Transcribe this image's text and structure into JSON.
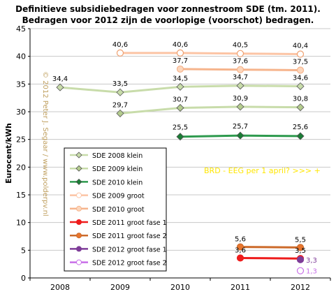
{
  "chart_data": {
    "type": "line",
    "title": "Definitieve subsidiebedragen  voor zonnestroom  SDE (tm. 2011).",
    "subtitle": "Bedragen voor 2012 zijn de voorlopige  (voorschot) bedragen.",
    "xlabel": "",
    "ylabel": "Eurocent/kWh",
    "categories": [
      "2008",
      "2009",
      "2010",
      "2011",
      "2012"
    ],
    "ylim": [
      0,
      45
    ],
    "yticks": [
      "0",
      "5",
      "10",
      "15",
      "20",
      "25",
      "30",
      "35",
      "40",
      "45"
    ],
    "grid": true,
    "legend_position": "left-center",
    "annotation": "BRD - EEG per 1 april? >>>  +",
    "watermark": "© 2012 Peter J. Segaar / www.polderpv.nl",
    "series": [
      {
        "name": "SDE 2008 klein",
        "values": [
          34.4,
          33.5,
          34.5,
          34.7,
          34.6
        ],
        "labels": [
          "34,4",
          "33,5",
          "34,5",
          "34,7",
          "34,6"
        ],
        "color": "#c8dcaa",
        "marker_fill": "#c8dcaa",
        "marker": "diamond"
      },
      {
        "name": "SDE 2009 klein",
        "values": [
          null,
          29.7,
          30.7,
          30.9,
          30.8
        ],
        "labels": [
          "",
          "29,7",
          "30,7",
          "30,9",
          "30,8"
        ],
        "color": "#c8dcaa",
        "marker_fill": "#b4cc8e",
        "marker": "diamond"
      },
      {
        "name": "SDE 2010 klein",
        "values": [
          null,
          null,
          25.5,
          25.7,
          25.6
        ],
        "labels": [
          "",
          "",
          "25,5",
          "25,7",
          "25,6"
        ],
        "color": "#2e9a4e",
        "marker_fill": "#1a7d35",
        "marker": "diamond"
      },
      {
        "name": "SDE 2009 groot",
        "values": [
          null,
          40.6,
          40.6,
          40.5,
          40.4
        ],
        "labels": [
          "",
          "40,6",
          "40,6",
          "40,5",
          "40,4"
        ],
        "color": "#fcc4a4",
        "marker_fill": "#ffffff",
        "marker": "circle"
      },
      {
        "name": "SDE 2010 groot",
        "values": [
          null,
          null,
          37.7,
          37.6,
          37.5
        ],
        "labels": [
          "",
          "",
          "37,7",
          "37,6",
          "37,5"
        ],
        "color": "#f6b48c",
        "marker_fill": "#fcd7bd",
        "marker": "circle"
      },
      {
        "name": "SDE 2011 groot fase 1",
        "values": [
          null,
          null,
          null,
          3.6,
          3.5
        ],
        "labels": [
          "",
          "",
          "",
          "3,6",
          "3,5"
        ],
        "color": "#ee1c1c",
        "marker_fill": "#ee1c1c",
        "marker": "circle"
      },
      {
        "name": "SDE 2011 groot fase 2",
        "values": [
          null,
          null,
          null,
          5.6,
          5.5
        ],
        "labels": [
          "",
          "",
          "",
          "5,6",
          "5,5"
        ],
        "color": "#cc6a2a",
        "marker_fill": "#e8762e",
        "marker": "circle"
      },
      {
        "name": "SDE 2012 groot fase 1",
        "values": [
          null,
          null,
          null,
          null,
          3.3
        ],
        "labels": [
          "",
          "",
          "",
          "",
          "3,3"
        ],
        "color": "#7e3c98",
        "marker_fill": "#7e3c98",
        "marker": "circle"
      },
      {
        "name": "SDE 2012 groot fase 2",
        "values": [
          null,
          null,
          null,
          null,
          1.3
        ],
        "labels": [
          "",
          "",
          "",
          "",
          "1,3"
        ],
        "color": "#c86ee8",
        "marker_fill": "#ffffff",
        "marker": "circle"
      }
    ]
  }
}
